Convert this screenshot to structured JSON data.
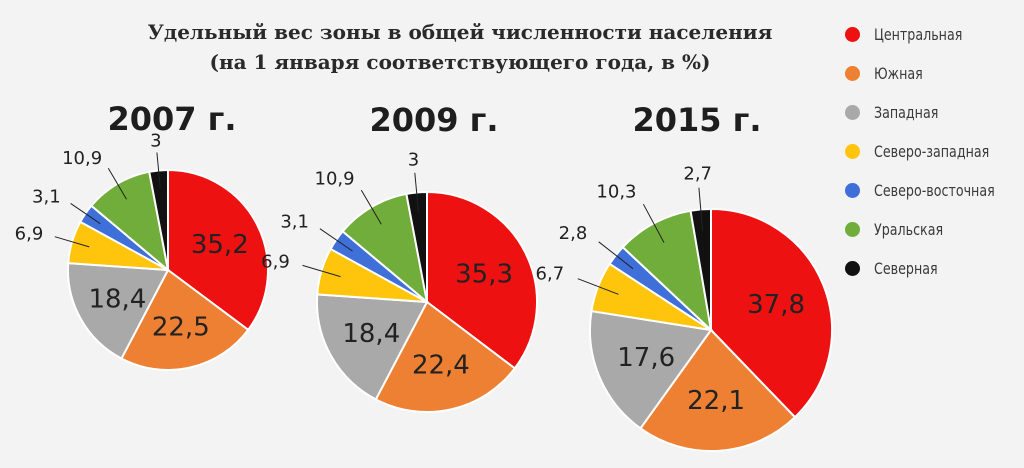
{
  "title": {
    "line1": "Удельный вес зоны в общей численности населения",
    "line2": "(на 1 января соответствующего года, в %)"
  },
  "colors": {
    "central": "#ee1111",
    "south": "#ee8033",
    "west": "#a9a9a9",
    "northwest": "#ffc50d",
    "northeast": "#3f6fd8",
    "ural": "#70ad3a",
    "north": "#111111"
  },
  "legend": [
    {
      "key": "central",
      "label": "Центральная"
    },
    {
      "key": "south",
      "label": "Южная"
    },
    {
      "key": "west",
      "label": "Западная"
    },
    {
      "key": "northwest",
      "label": "Северо-западная"
    },
    {
      "key": "northeast",
      "label": "Северо-восточная"
    },
    {
      "key": "ural",
      "label": "Уральская"
    },
    {
      "key": "north",
      "label": "Северная"
    }
  ],
  "chart_data": [
    {
      "type": "pie",
      "title": "2007 г.",
      "slices": [
        {
          "key": "central",
          "label": "35,2",
          "value": 35.2
        },
        {
          "key": "south",
          "label": "22,5",
          "value": 22.5
        },
        {
          "key": "west",
          "label": "18,4",
          "value": 18.4
        },
        {
          "key": "northwest",
          "label": "6,9",
          "value": 6.9
        },
        {
          "key": "northeast",
          "label": "3,1",
          "value": 3.1
        },
        {
          "key": "ural",
          "label": "10,9",
          "value": 10.9
        },
        {
          "key": "north",
          "label": "3",
          "value": 3.0
        }
      ]
    },
    {
      "type": "pie",
      "title": "2009 г.",
      "slices": [
        {
          "key": "central",
          "label": "35,3",
          "value": 35.3
        },
        {
          "key": "south",
          "label": "22,4",
          "value": 22.4
        },
        {
          "key": "west",
          "label": "18,4",
          "value": 18.4
        },
        {
          "key": "northwest",
          "label": "6,9",
          "value": 6.9
        },
        {
          "key": "northeast",
          "label": "3,1",
          "value": 3.1
        },
        {
          "key": "ural",
          "label": "10,9",
          "value": 10.9
        },
        {
          "key": "north",
          "label": "3",
          "value": 3.0
        }
      ]
    },
    {
      "type": "pie",
      "title": "2015 г.",
      "slices": [
        {
          "key": "central",
          "label": "37,8",
          "value": 37.8
        },
        {
          "key": "south",
          "label": "22,1",
          "value": 22.1
        },
        {
          "key": "west",
          "label": "17,6",
          "value": 17.6
        },
        {
          "key": "northwest",
          "label": "6,7",
          "value": 6.7
        },
        {
          "key": "northeast",
          "label": "2,8",
          "value": 2.8
        },
        {
          "key": "ural",
          "label": "10,3",
          "value": 10.3
        },
        {
          "key": "north",
          "label": "2,7",
          "value": 2.7
        }
      ]
    }
  ]
}
